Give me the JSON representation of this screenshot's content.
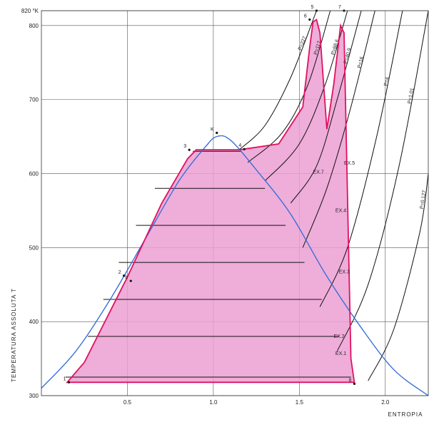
{
  "chart_data": {
    "type": "line",
    "title": "",
    "xlabel": "ENTROPIA",
    "ylabel": "TEMPERATURA ASSOLUTA T",
    "xlim": [
      0.0,
      2.25
    ],
    "ylim": [
      300,
      820
    ],
    "x_ticks": [
      {
        "value": 0.5,
        "label": "0.5"
      },
      {
        "value": 1.0,
        "label": "1.0"
      },
      {
        "value": 1.5,
        "label": "1.5"
      },
      {
        "value": 2.0,
        "label": "2.0"
      }
    ],
    "y_ticks": [
      {
        "value": 820,
        "label": "820 °K"
      },
      {
        "value": 800,
        "label": "800"
      },
      {
        "value": 700,
        "label": "700"
      },
      {
        "value": 600,
        "label": "600"
      },
      {
        "value": 500,
        "label": "500"
      },
      {
        "value": 400,
        "label": "400"
      },
      {
        "value": 300,
        "label": "300"
      }
    ],
    "grid": true,
    "colors": {
      "saturation_dome": "#3a6fd8",
      "cycle": "#e0115f",
      "fill": "#ec9fd2",
      "isobar": "#111111",
      "grid": "#555555"
    },
    "saturation_curve": {
      "x": [
        0.0,
        0.2,
        0.4,
        0.6,
        0.8,
        0.95,
        1.02,
        1.1,
        1.25,
        1.45,
        1.65,
        1.85,
        2.05,
        2.25
      ],
      "y": [
        310,
        360,
        430,
        510,
        590,
        635,
        650,
        645,
        605,
        545,
        465,
        395,
        335,
        300
      ]
    },
    "cycle": {
      "x": [
        0.15,
        0.25,
        0.5,
        0.7,
        0.85,
        0.9,
        1.15,
        1.38,
        1.52,
        1.56,
        1.58,
        1.6,
        1.62,
        1.66,
        1.7,
        1.74,
        1.76,
        1.8,
        1.82,
        0.15
      ],
      "y": [
        318,
        345,
        460,
        560,
        620,
        632,
        632,
        640,
        690,
        770,
        805,
        808,
        790,
        660,
        720,
        800,
        790,
        350,
        318,
        318
      ]
    },
    "isobars": [
      {
        "label": "P=227",
        "x": [
          1.15,
          1.3,
          1.45,
          1.6
        ],
        "y": [
          632,
          665,
          730,
          820
        ]
      },
      {
        "label": "P=117",
        "x": [
          1.2,
          1.4,
          1.55,
          1.68
        ],
        "y": [
          615,
          655,
          720,
          820
        ]
      },
      {
        "label": "P=68.6",
        "x": [
          1.3,
          1.5,
          1.65,
          1.78
        ],
        "y": [
          590,
          640,
          720,
          820
        ]
      },
      {
        "label": "P=40.9",
        "x": [
          1.45,
          1.6,
          1.72,
          1.86
        ],
        "y": [
          560,
          610,
          700,
          820
        ]
      },
      {
        "label": "P=16",
        "x": [
          1.52,
          1.66,
          1.8,
          1.94
        ],
        "y": [
          500,
          580,
          690,
          820
        ]
      },
      {
        "label": "P=4",
        "x": [
          1.62,
          1.78,
          1.95,
          2.1
        ],
        "y": [
          420,
          500,
          650,
          820
        ]
      },
      {
        "label": "P=1.01",
        "x": [
          1.72,
          1.9,
          2.08,
          2.25
        ],
        "y": [
          360,
          450,
          610,
          820
        ]
      },
      {
        "label": "P=0.127",
        "x": [
          1.9,
          2.05,
          2.2,
          2.25
        ],
        "y": [
          320,
          390,
          520,
          600
        ]
      }
    ],
    "constant_temperature_lines": [
      {
        "y": 630,
        "x1": 0.88,
        "x2": 1.16
      },
      {
        "y": 580,
        "x1": 0.66,
        "x2": 1.3
      },
      {
        "y": 530,
        "x1": 0.55,
        "x2": 1.42
      },
      {
        "y": 480,
        "x1": 0.45,
        "x2": 1.53
      },
      {
        "y": 430,
        "x1": 0.36,
        "x2": 1.63
      },
      {
        "y": 380,
        "x1": 0.27,
        "x2": 1.73
      },
      {
        "y": 325,
        "x1": 0.14,
        "x2": 1.8
      }
    ],
    "point_labels": [
      {
        "label": "1",
        "x": 0.16,
        "y": 318
      },
      {
        "label": "2",
        "x": 0.48,
        "y": 462
      },
      {
        "label": "b",
        "x": 0.52,
        "y": 455
      },
      {
        "label": "3",
        "x": 0.86,
        "y": 632
      },
      {
        "label": "4",
        "x": 1.18,
        "y": 633
      },
      {
        "label": "K",
        "x": 1.02,
        "y": 655
      },
      {
        "label": "5",
        "x": 1.6,
        "y": 820
      },
      {
        "label": "6",
        "x": 1.56,
        "y": 808
      },
      {
        "label": "7",
        "x": 1.76,
        "y": 820
      },
      {
        "label": "8",
        "x": 1.82,
        "y": 316
      }
    ],
    "extraction_labels": [
      {
        "label": "EX.7",
        "x": 1.58,
        "y": 600
      },
      {
        "label": "EX.5",
        "x": 1.76,
        "y": 612
      },
      {
        "label": "EX.4",
        "x": 1.71,
        "y": 548
      },
      {
        "label": "EX.3",
        "x": 1.73,
        "y": 465
      },
      {
        "label": "EX.2",
        "x": 1.7,
        "y": 378
      },
      {
        "label": "EX.1",
        "x": 1.71,
        "y": 355
      }
    ]
  }
}
